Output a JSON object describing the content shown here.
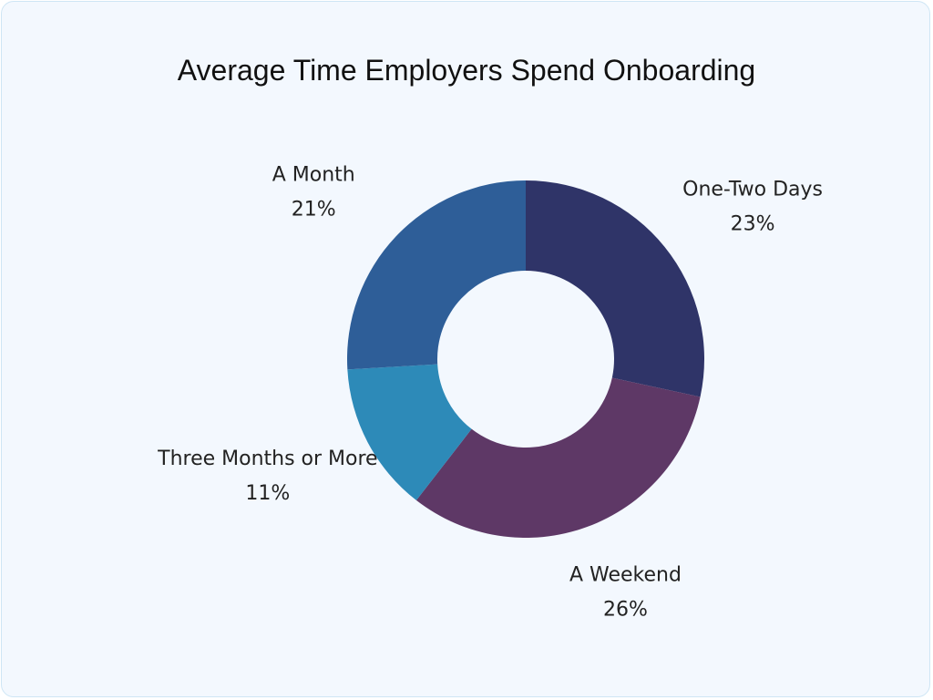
{
  "chart_data": {
    "type": "donut",
    "title": "Average Time  Employers Spend Onboarding",
    "categories": [
      "One-Two Days",
      "A Weekend",
      "Three Months or More",
      "A Month"
    ],
    "values": [
      23,
      26,
      11,
      21
    ],
    "value_labels": [
      "23%",
      "26%",
      "11%",
      "21%"
    ],
    "colors": [
      "#2f3468",
      "#5e3866",
      "#2d8ab8",
      "#2e5e98"
    ]
  }
}
